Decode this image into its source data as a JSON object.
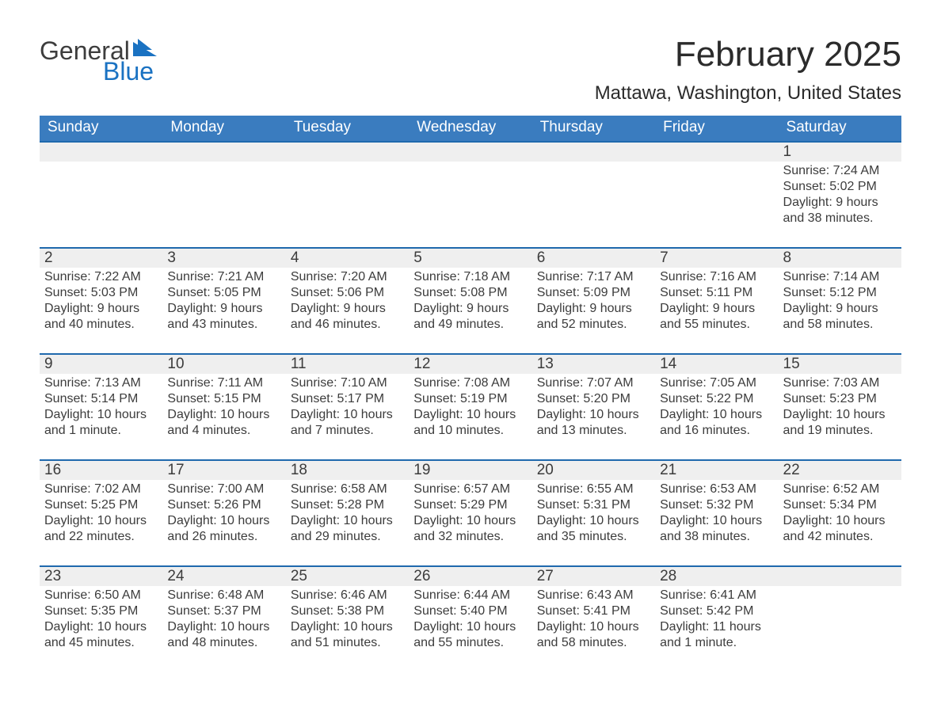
{
  "logo": {
    "word1": "General",
    "word2": "Blue"
  },
  "title": "February 2025",
  "location": "Mattawa, Washington, United States",
  "colors": {
    "header_blue": "#3a7cbf",
    "accent_blue": "#1f69ad",
    "row_header_bg": "#efefef",
    "text_dark": "#2b2b2b",
    "text_gray": "#3c3c3c",
    "logo_dark": "#3d3d3d",
    "logo_blue": "#1a72c2",
    "background": "#ffffff"
  },
  "typography": {
    "title_fontsize": 44,
    "location_fontsize": 24,
    "weekday_fontsize": 19,
    "daynum_fontsize": 19,
    "body_fontsize": 16,
    "font_family": "Segoe UI"
  },
  "calendar": {
    "type": "table",
    "columns": [
      "Sunday",
      "Monday",
      "Tuesday",
      "Wednesday",
      "Thursday",
      "Friday",
      "Saturday"
    ],
    "weeks": [
      [
        null,
        null,
        null,
        null,
        null,
        null,
        {
          "day": "1",
          "sunrise": "7:24 AM",
          "sunset": "5:02 PM",
          "daylight": "9 hours and 38 minutes."
        }
      ],
      [
        {
          "day": "2",
          "sunrise": "7:22 AM",
          "sunset": "5:03 PM",
          "daylight": "9 hours and 40 minutes."
        },
        {
          "day": "3",
          "sunrise": "7:21 AM",
          "sunset": "5:05 PM",
          "daylight": "9 hours and 43 minutes."
        },
        {
          "day": "4",
          "sunrise": "7:20 AM",
          "sunset": "5:06 PM",
          "daylight": "9 hours and 46 minutes."
        },
        {
          "day": "5",
          "sunrise": "7:18 AM",
          "sunset": "5:08 PM",
          "daylight": "9 hours and 49 minutes."
        },
        {
          "day": "6",
          "sunrise": "7:17 AM",
          "sunset": "5:09 PM",
          "daylight": "9 hours and 52 minutes."
        },
        {
          "day": "7",
          "sunrise": "7:16 AM",
          "sunset": "5:11 PM",
          "daylight": "9 hours and 55 minutes."
        },
        {
          "day": "8",
          "sunrise": "7:14 AM",
          "sunset": "5:12 PM",
          "daylight": "9 hours and 58 minutes."
        }
      ],
      [
        {
          "day": "9",
          "sunrise": "7:13 AM",
          "sunset": "5:14 PM",
          "daylight": "10 hours and 1 minute."
        },
        {
          "day": "10",
          "sunrise": "7:11 AM",
          "sunset": "5:15 PM",
          "daylight": "10 hours and 4 minutes."
        },
        {
          "day": "11",
          "sunrise": "7:10 AM",
          "sunset": "5:17 PM",
          "daylight": "10 hours and 7 minutes."
        },
        {
          "day": "12",
          "sunrise": "7:08 AM",
          "sunset": "5:19 PM",
          "daylight": "10 hours and 10 minutes."
        },
        {
          "day": "13",
          "sunrise": "7:07 AM",
          "sunset": "5:20 PM",
          "daylight": "10 hours and 13 minutes."
        },
        {
          "day": "14",
          "sunrise": "7:05 AM",
          "sunset": "5:22 PM",
          "daylight": "10 hours and 16 minutes."
        },
        {
          "day": "15",
          "sunrise": "7:03 AM",
          "sunset": "5:23 PM",
          "daylight": "10 hours and 19 minutes."
        }
      ],
      [
        {
          "day": "16",
          "sunrise": "7:02 AM",
          "sunset": "5:25 PM",
          "daylight": "10 hours and 22 minutes."
        },
        {
          "day": "17",
          "sunrise": "7:00 AM",
          "sunset": "5:26 PM",
          "daylight": "10 hours and 26 minutes."
        },
        {
          "day": "18",
          "sunrise": "6:58 AM",
          "sunset": "5:28 PM",
          "daylight": "10 hours and 29 minutes."
        },
        {
          "day": "19",
          "sunrise": "6:57 AM",
          "sunset": "5:29 PM",
          "daylight": "10 hours and 32 minutes."
        },
        {
          "day": "20",
          "sunrise": "6:55 AM",
          "sunset": "5:31 PM",
          "daylight": "10 hours and 35 minutes."
        },
        {
          "day": "21",
          "sunrise": "6:53 AM",
          "sunset": "5:32 PM",
          "daylight": "10 hours and 38 minutes."
        },
        {
          "day": "22",
          "sunrise": "6:52 AM",
          "sunset": "5:34 PM",
          "daylight": "10 hours and 42 minutes."
        }
      ],
      [
        {
          "day": "23",
          "sunrise": "6:50 AM",
          "sunset": "5:35 PM",
          "daylight": "10 hours and 45 minutes."
        },
        {
          "day": "24",
          "sunrise": "6:48 AM",
          "sunset": "5:37 PM",
          "daylight": "10 hours and 48 minutes."
        },
        {
          "day": "25",
          "sunrise": "6:46 AM",
          "sunset": "5:38 PM",
          "daylight": "10 hours and 51 minutes."
        },
        {
          "day": "26",
          "sunrise": "6:44 AM",
          "sunset": "5:40 PM",
          "daylight": "10 hours and 55 minutes."
        },
        {
          "day": "27",
          "sunrise": "6:43 AM",
          "sunset": "5:41 PM",
          "daylight": "10 hours and 58 minutes."
        },
        {
          "day": "28",
          "sunrise": "6:41 AM",
          "sunset": "5:42 PM",
          "daylight": "11 hours and 1 minute."
        },
        null
      ]
    ],
    "labels": {
      "sunrise_prefix": "Sunrise: ",
      "sunset_prefix": "Sunset: ",
      "daylight_prefix": "Daylight: "
    }
  }
}
